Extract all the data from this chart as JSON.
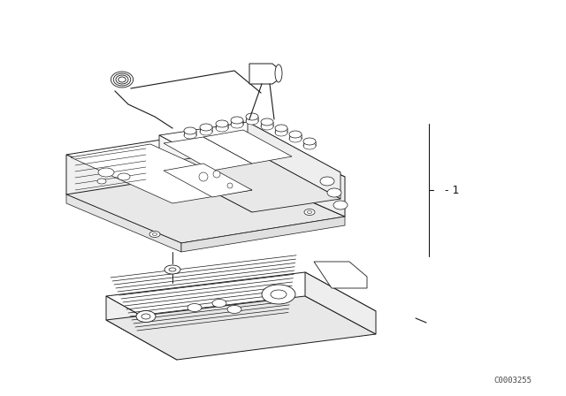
{
  "background_color": "#ffffff",
  "line_color": "#1a1a1a",
  "fig_width": 6.4,
  "fig_height": 4.48,
  "dpi": 100,
  "watermark": "C0003255",
  "part_number": "1"
}
